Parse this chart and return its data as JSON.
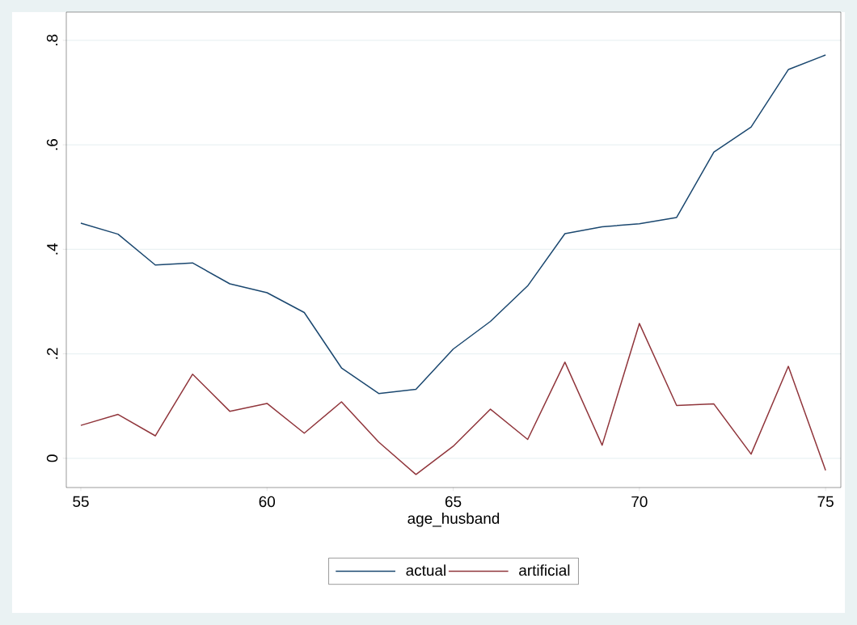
{
  "chart_data": {
    "type": "line",
    "xlabel": "age_husband",
    "x": [
      55,
      56,
      57,
      58,
      59,
      60,
      61,
      62,
      63,
      64,
      65,
      66,
      67,
      68,
      69,
      70,
      71,
      72,
      73,
      74,
      75
    ],
    "series": [
      {
        "name": "actual",
        "color": "#1a476f",
        "values": [
          0.45,
          0.429,
          0.37,
          0.374,
          0.334,
          0.317,
          0.279,
          0.173,
          0.124,
          0.132,
          0.209,
          0.262,
          0.33,
          0.43,
          0.443,
          0.449,
          0.461,
          0.586,
          0.634,
          0.744,
          0.772
        ]
      },
      {
        "name": "artificial",
        "color": "#90353b",
        "values": [
          0.063,
          0.084,
          0.043,
          0.161,
          0.09,
          0.105,
          0.048,
          0.108,
          0.031,
          -0.031,
          0.023,
          0.094,
          0.036,
          0.184,
          0.025,
          0.258,
          0.101,
          0.104,
          0.008,
          0.176,
          -0.023
        ]
      }
    ],
    "xlim": [
      54.61,
      75.41
    ],
    "ylim": [
      -0.056,
      0.854
    ],
    "xticks": [
      55,
      60,
      65,
      70,
      75
    ],
    "yticks": [
      0,
      {
        "value": 0.2,
        "label": ".2"
      },
      {
        "value": 0.4,
        "label": ".4"
      },
      {
        "value": 0.6,
        "label": ".6"
      },
      {
        "value": 0.8,
        "label": ".8"
      }
    ],
    "grid": "y",
    "legend": "bottom",
    "line_style": "solid",
    "marker": "none"
  }
}
